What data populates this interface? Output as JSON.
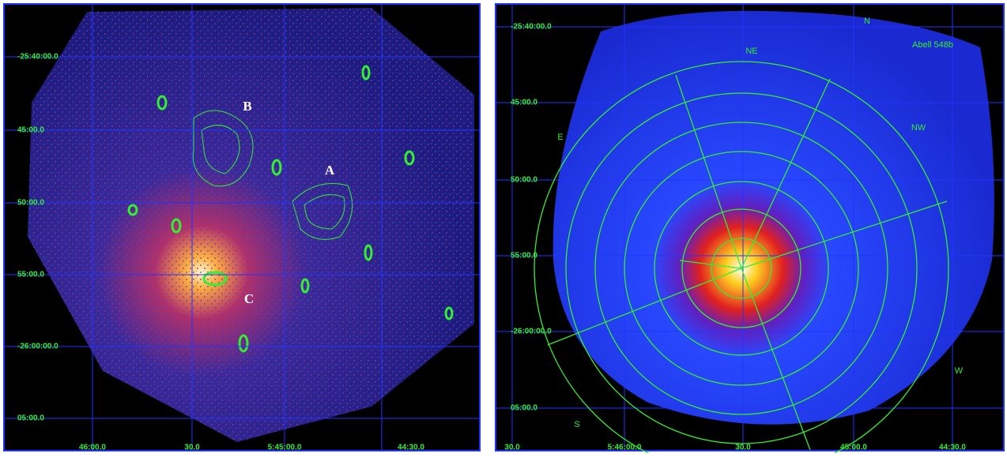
{
  "left_panel": {
    "dec_labels": [
      "-25:40:00.0",
      "45:00.0",
      "50:00.0",
      "55:00.0",
      "-26:00:00.0",
      "05:00.0"
    ],
    "ra_labels": [
      "46:00.0",
      "30.0",
      "5:45:00.0",
      "44:30.0"
    ],
    "source_labels": [
      "B",
      "A",
      "C"
    ]
  },
  "right_panel": {
    "dec_labels": [
      "-25:40:00.0",
      "45:00.0",
      "50:00.0",
      "55:00.0",
      "-26:00:00.0",
      "05:00.0"
    ],
    "ra_labels": [
      "30.0",
      "5:46:00.0",
      "30.0",
      "45:00.0",
      "44:30.0"
    ],
    "cluster_label": "Abell 548b",
    "sector_labels": [
      "N",
      "NE",
      "NW",
      "E",
      "W",
      "S"
    ]
  }
}
